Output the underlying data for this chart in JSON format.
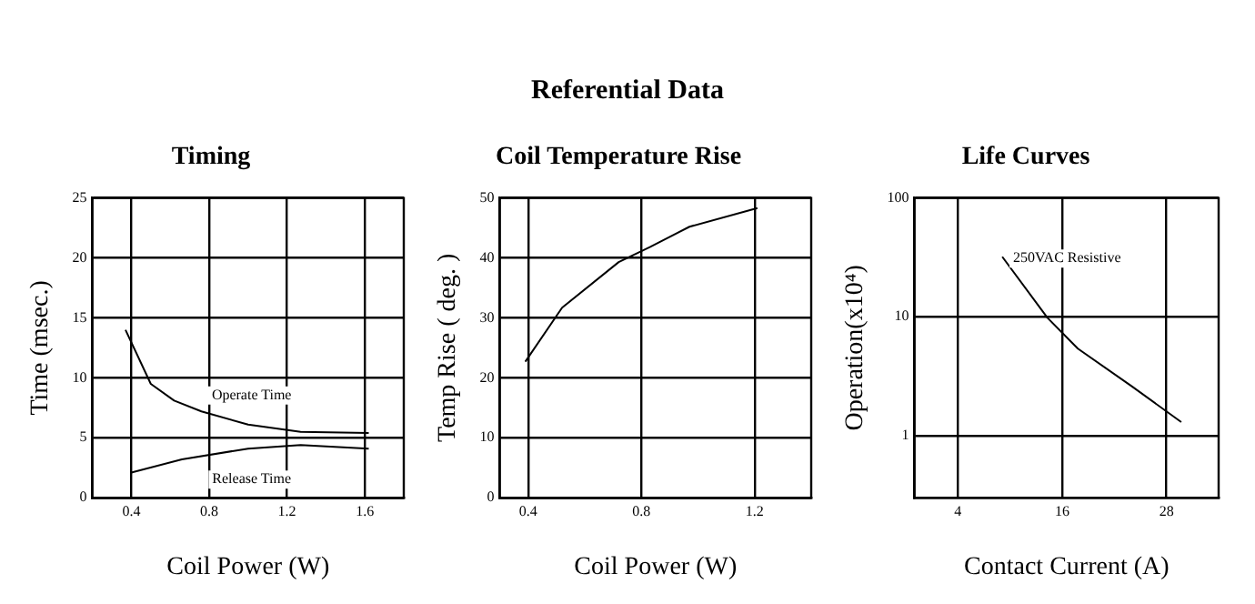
{
  "chart_data": [
    {
      "type": "other",
      "title": "Referential Data"
    },
    {
      "type": "line",
      "title": "Timing",
      "xlabel": "Coil Power (W)",
      "ylabel": "Time (msec.)",
      "xlim": [
        0.2,
        1.8
      ],
      "xticks": [
        0.4,
        0.8,
        1.2,
        1.6
      ],
      "ylim": [
        0,
        25
      ],
      "yticks": [
        0,
        5,
        10,
        15,
        20,
        25
      ],
      "grid": true,
      "marker": "none",
      "series": [
        {
          "name": "Operate Time",
          "color": "#000000",
          "x": [
            0.37,
            0.5,
            0.62,
            0.76,
            1.0,
            1.27,
            1.62
          ],
          "values": [
            14.0,
            9.5,
            8.1,
            7.2,
            6.1,
            5.5,
            5.4
          ]
        },
        {
          "name": "Release Time",
          "color": "#000000",
          "x": [
            0.4,
            0.66,
            1.0,
            1.27,
            1.62
          ],
          "values": [
            2.1,
            3.2,
            4.1,
            4.4,
            4.1
          ]
        }
      ]
    },
    {
      "type": "line",
      "title": "Coil Temperature Rise",
      "xlabel": "Coil Power (W)",
      "ylabel": "Temp Rise ( deg. )",
      "xlim": [
        0.3,
        1.4
      ],
      "xticks": [
        0.4,
        0.8,
        1.2
      ],
      "ylim": [
        0,
        50
      ],
      "yticks": [
        0,
        10,
        20,
        30,
        40,
        50
      ],
      "grid": true,
      "marker": "none",
      "series": [
        {
          "color": "#000000",
          "x": [
            0.39,
            0.52,
            0.72,
            0.83,
            0.97,
            1.21
          ],
          "values": [
            22.7,
            31.7,
            39.3,
            41.8,
            45.2,
            48.3
          ]
        }
      ]
    },
    {
      "type": "line",
      "title": "Life Curves",
      "xlabel": "Contact Current (A)",
      "ylabel": "Operation(x10⁴)",
      "log": "y",
      "xlim": [
        -1,
        34
      ],
      "xticks": [
        4,
        16,
        28
      ],
      "ylim": [
        0.3,
        100
      ],
      "yticks": [
        1,
        10,
        100
      ],
      "grid": true,
      "marker": "none",
      "series": [
        {
          "name": "250VAC Resistive",
          "color": "#000000",
          "x": [
            9.1,
            14.3,
            17.8,
            24.0,
            29.7
          ],
          "values": [
            32,
            9.8,
            5.4,
            2.6,
            1.3
          ]
        }
      ]
    }
  ]
}
